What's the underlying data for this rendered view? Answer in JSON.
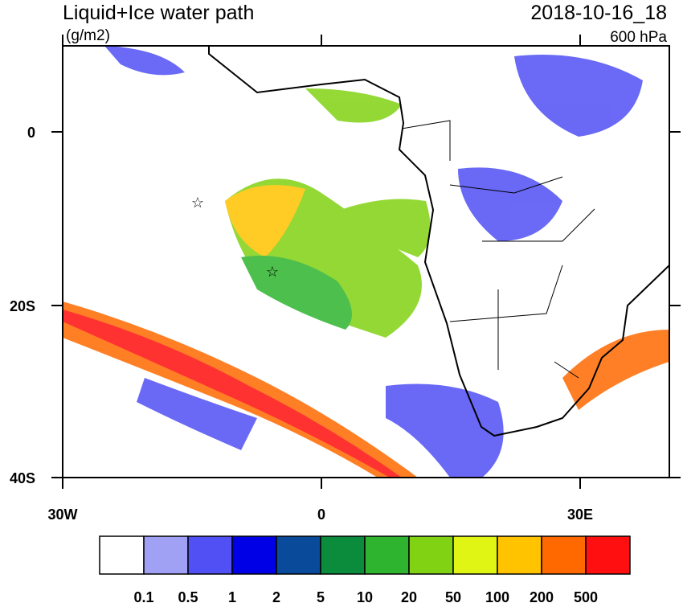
{
  "header": {
    "title": "Liquid+Ice water path",
    "units": "(g/m2)",
    "date": "2018-10-16_18",
    "level": "600 hPa"
  },
  "map": {
    "lat_labels": [
      "0",
      "20S",
      "40S"
    ],
    "lon_labels": [
      "30W",
      "0",
      "30E"
    ]
  },
  "colorbar": {
    "colors": [
      "#ffffff",
      "#a0a0f5",
      "#5050f5",
      "#0000e6",
      "#0a4a9a",
      "#0a8c3c",
      "#2eb42e",
      "#82d214",
      "#e1f514",
      "#ffc300",
      "#ff6900",
      "#ff0f0f"
    ],
    "labels": [
      "0.1",
      "0.5",
      "1",
      "2",
      "5",
      "10",
      "20",
      "50",
      "100",
      "200",
      "500"
    ]
  }
}
